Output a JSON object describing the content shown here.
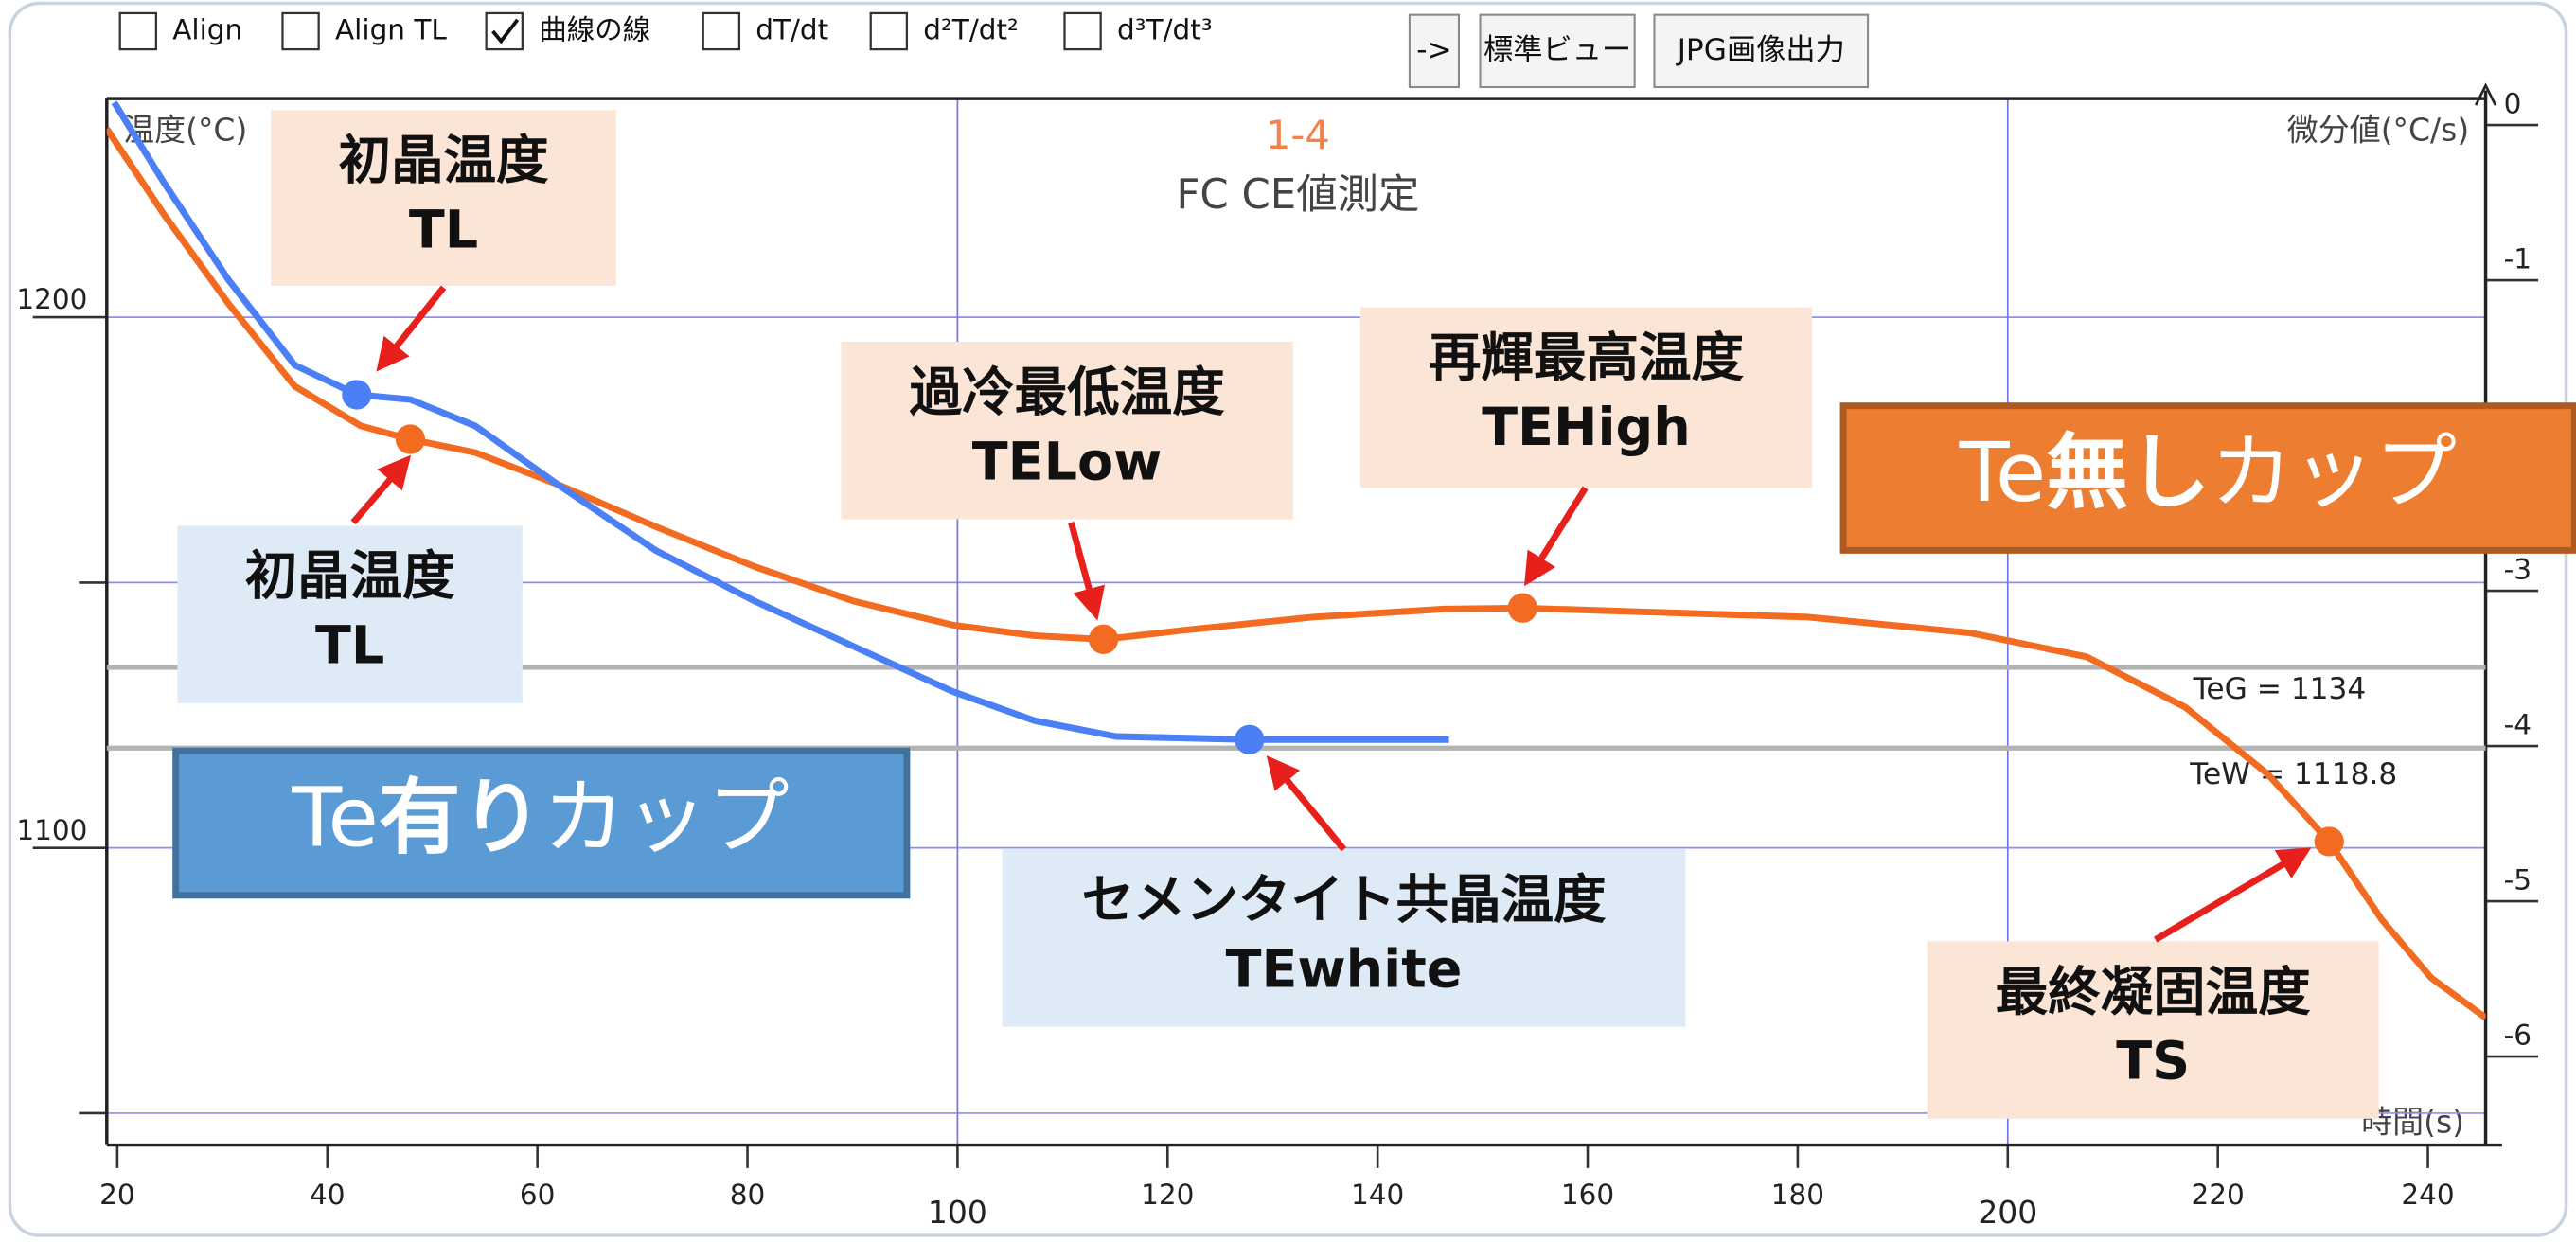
{
  "toolbar": {
    "checkboxes": [
      {
        "label": "Align",
        "checked": false
      },
      {
        "label": "Align TL",
        "checked": false
      },
      {
        "label": "曲線の線",
        "checked": true
      },
      {
        "label": "dT/dt",
        "checked": false
      },
      {
        "label": "d²T/dt²",
        "checked": false
      },
      {
        "label": "d³T/dt³",
        "checked": false
      }
    ],
    "buttons": [
      "->",
      "標準ビュー",
      "JPG画像出力"
    ]
  },
  "chart_data": {
    "type": "line",
    "title": "1-4",
    "subtitle": "FC CE値測定",
    "y_label": "温度(°C)",
    "y2_label": "微分値(°C/s)",
    "x_label": "時間(s)",
    "xlim": [
      19,
      245.5
    ],
    "xticks": [
      20,
      40,
      60,
      80,
      100,
      120,
      140,
      160,
      180,
      200,
      220,
      240
    ],
    "x_major_grid": [
      100,
      200
    ],
    "ylim": [
      1044,
      1241.2
    ],
    "yticks": [
      1100,
      1200
    ],
    "y_minor_grid": [
      1050,
      1150
    ],
    "y2lim": [
      -6.57,
      0.17
    ],
    "y2ticks": [
      0,
      -1,
      -3,
      -4,
      -5,
      -6
    ],
    "series": [
      {
        "name": "Te無しカップ",
        "color": "#f26b21",
        "x": [
          19,
          24.4,
          30.6,
          36.9,
          43.2,
          47.9,
          54.1,
          61.9,
          71.3,
          80.7,
          90.1,
          99.5,
          107.3,
          113.9,
          121.4,
          133.9,
          146.4,
          153.8,
          165.2,
          180.9,
          196.5,
          207.5,
          216.9,
          224.7,
          230.6,
          235.6,
          240.3,
          245.5
        ],
        "values": [
          1235.5,
          1219.5,
          1202.5,
          1187,
          1179.5,
          1177,
          1174.5,
          1168.5,
          1160.5,
          1153,
          1146.5,
          1142,
          1140,
          1139.3,
          1141,
          1143.5,
          1145,
          1145.2,
          1144.5,
          1143.5,
          1140.5,
          1136,
          1126.5,
          1114,
          1101.2,
          1086.5,
          1075.5,
          1068
        ]
      },
      {
        "name": "Te有りカップ",
        "color": "#4a7ff5",
        "x": [
          19.7,
          24.4,
          30.6,
          36.9,
          42.8,
          47.9,
          54.1,
          61.9,
          71.3,
          80.7,
          90.1,
          99.5,
          107.3,
          115.1,
          127.8,
          146.8
        ],
        "values": [
          1240.5,
          1225.5,
          1207,
          1191,
          1185.4,
          1184.5,
          1179.5,
          1168.5,
          1156,
          1146.5,
          1138,
          1129.5,
          1124,
          1121,
          1120.4,
          1120.4
        ]
      }
    ],
    "reference_lines": [
      {
        "label": "TeG = 1134",
        "value": 1134
      },
      {
        "label": "TeW = 1118.8",
        "value": 1118.8
      }
    ],
    "markers": [
      {
        "series": 1,
        "x": 42.8,
        "y": 1185.4,
        "label": [
          "初晶温度",
          "TL"
        ]
      },
      {
        "series": 0,
        "x": 47.9,
        "y": 1177,
        "label": [
          "初晶温度",
          "TL"
        ]
      },
      {
        "series": 0,
        "x": 113.9,
        "y": 1139.3,
        "label": [
          "過冷最低温度",
          "TELow"
        ]
      },
      {
        "series": 0,
        "x": 153.8,
        "y": 1145.2,
        "label": [
          "再輝最高温度",
          "TEHigh"
        ]
      },
      {
        "series": 1,
        "x": 127.8,
        "y": 1120.4,
        "label": [
          "セメンタイト共晶温度",
          "TEwhite"
        ]
      },
      {
        "series": 0,
        "x": 230.6,
        "y": 1101.2,
        "label": [
          "最終凝固温度",
          "TS"
        ]
      }
    ],
    "legend_boxes": [
      {
        "parts": [
          "Te",
          "有り",
          "カップ"
        ],
        "color": "#5b9bd5",
        "border": "#41719c"
      },
      {
        "parts": [
          "Te",
          "無し",
          "カップ"
        ],
        "color": "#ed7d31",
        "border": "#ae5a21"
      }
    ]
  }
}
